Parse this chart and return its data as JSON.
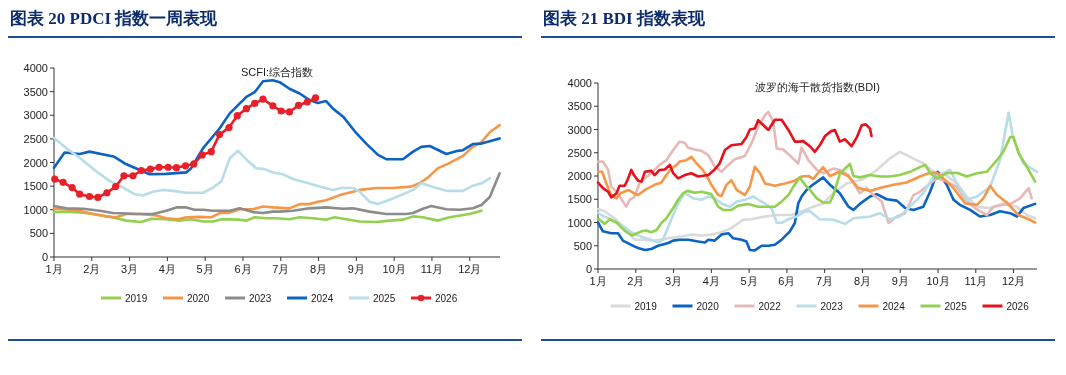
{
  "chart_data": [
    {
      "type": "line",
      "title": "图表 20 PDCI 指数一周表现",
      "subtitle": "SCFI:综合指数",
      "xlim": [
        1,
        12.8
      ],
      "xticks": [
        {
          "value": 1,
          "label": "1月"
        },
        {
          "value": 2,
          "label": "2月"
        },
        {
          "value": 3,
          "label": "3月"
        },
        {
          "value": 4,
          "label": "4月"
        },
        {
          "value": 5,
          "label": "5月"
        },
        {
          "value": 6,
          "label": "6月"
        },
        {
          "value": 7,
          "label": "7月"
        },
        {
          "value": 8,
          "label": "8月"
        },
        {
          "value": 9,
          "label": "9月"
        },
        {
          "value": 10,
          "label": "10月"
        },
        {
          "value": 11,
          "label": "11月"
        },
        {
          "value": 12,
          "label": "12月"
        }
      ],
      "ylim": [
        0,
        4000
      ],
      "yticks": [
        0,
        500,
        1000,
        1500,
        2000,
        2500,
        3000,
        3500,
        4000
      ],
      "legend": "bottom",
      "series": [
        {
          "name": "2019",
          "color": "#92d050",
          "x": [
            1.0,
            1.33,
            1.77,
            2.21,
            2.65,
            2.91,
            3.31,
            3.57,
            3.97,
            4.32,
            4.63,
            4.94,
            5.21,
            5.43,
            5.91,
            6.09,
            6.31,
            6.62,
            6.88,
            7.23,
            7.5,
            7.85,
            8.2,
            8.42,
            8.73,
            9.09,
            9.53,
            9.88,
            10.23,
            10.5,
            10.76,
            11.16,
            11.47,
            11.99,
            12.31
          ],
          "values": [
            950,
            960,
            940,
            890,
            820,
            770,
            740,
            810,
            800,
            770,
            800,
            750,
            750,
            800,
            790,
            770,
            840,
            820,
            820,
            800,
            840,
            820,
            790,
            840,
            800,
            750,
            740,
            770,
            790,
            860,
            840,
            770,
            840,
            910,
            980
          ]
        },
        {
          "name": "2020",
          "color": "#f79646",
          "x": [
            1.0,
            1.33,
            1.68,
            2.03,
            2.38,
            2.65,
            2.91,
            3.27,
            3.71,
            3.97,
            4.28,
            4.5,
            4.85,
            5.16,
            5.38,
            5.65,
            5.91,
            6.26,
            6.53,
            6.79,
            7.23,
            7.5,
            7.76,
            7.98,
            8.2,
            8.56,
            8.91,
            9.09,
            9.53,
            9.97,
            10.45,
            10.67,
            10.89,
            11.16,
            11.42,
            11.82,
            12.08,
            12.31,
            12.53,
            12.79
          ],
          "values": [
            1020,
            1010,
            980,
            910,
            860,
            840,
            910,
            910,
            880,
            820,
            800,
            840,
            850,
            840,
            930,
            940,
            1010,
            1010,
            1070,
            1050,
            1030,
            1120,
            1120,
            1170,
            1200,
            1310,
            1380,
            1420,
            1460,
            1460,
            1490,
            1560,
            1680,
            1880,
            1970,
            2140,
            2330,
            2430,
            2640,
            2790
          ]
        },
        {
          "name": "2023",
          "color": "#8c8c8c",
          "x": [
            1.0,
            1.33,
            1.77,
            2.21,
            2.56,
            2.91,
            3.18,
            3.62,
            3.97,
            4.24,
            4.5,
            4.72,
            4.94,
            5.21,
            5.65,
            5.91,
            6.26,
            6.53,
            6.79,
            6.97,
            7.32,
            7.76,
            8.2,
            8.65,
            8.91,
            9.35,
            9.79,
            10.32,
            10.5,
            10.76,
            10.98,
            11.38,
            11.73,
            12.08,
            12.31,
            12.53,
            12.79
          ],
          "values": [
            1080,
            1030,
            1020,
            980,
            930,
            920,
            910,
            910,
            980,
            1050,
            1050,
            1000,
            1000,
            980,
            980,
            1030,
            950,
            930,
            960,
            960,
            980,
            1030,
            1050,
            1020,
            1030,
            960,
            910,
            910,
            930,
            1020,
            1080,
            1010,
            1000,
            1030,
            1100,
            1270,
            1770
          ]
        },
        {
          "name": "2024",
          "color": "#0b63c4",
          "x": [
            1.0,
            1.28,
            1.68,
            1.94,
            2.6,
            2.87,
            3.53,
            3.97,
            4.5,
            4.63,
            4.94,
            5.38,
            5.65,
            6.09,
            6.31,
            6.53,
            6.79,
            6.97,
            7.23,
            7.5,
            7.76,
            7.98,
            8.2,
            8.38,
            8.65,
            9.0,
            9.26,
            9.57,
            9.79,
            10.23,
            10.5,
            10.72,
            10.94,
            11.38,
            11.64,
            11.82,
            12.08,
            12.31,
            12.79
          ],
          "values": [
            1890,
            2210,
            2180,
            2230,
            2120,
            1980,
            1750,
            1760,
            1790,
            1880,
            2300,
            2720,
            3040,
            3390,
            3490,
            3720,
            3740,
            3700,
            3560,
            3460,
            3320,
            3260,
            3300,
            3140,
            2970,
            2620,
            2400,
            2160,
            2070,
            2070,
            2230,
            2330,
            2350,
            2180,
            2240,
            2260,
            2390,
            2400,
            2510
          ]
        },
        {
          "name": "2025",
          "color": "#b7dde8",
          "x": [
            1.0,
            1.33,
            1.68,
            2.12,
            2.47,
            2.83,
            3.13,
            3.35,
            3.62,
            3.88,
            4.15,
            4.5,
            4.94,
            5.21,
            5.43,
            5.65,
            5.87,
            6.13,
            6.35,
            6.57,
            6.79,
            7.06,
            7.32,
            7.68,
            8.03,
            8.38,
            8.6,
            8.91,
            9.09,
            9.35,
            9.57,
            9.97,
            10.32,
            10.5,
            10.72,
            11.03,
            11.38,
            11.82,
            12.08,
            12.31,
            12.54
          ],
          "values": [
            2520,
            2300,
            2100,
            1810,
            1610,
            1470,
            1330,
            1300,
            1380,
            1420,
            1400,
            1360,
            1360,
            1470,
            1600,
            2090,
            2250,
            2030,
            1880,
            1860,
            1790,
            1750,
            1650,
            1570,
            1490,
            1420,
            1460,
            1460,
            1380,
            1170,
            1120,
            1240,
            1360,
            1420,
            1560,
            1480,
            1400,
            1400,
            1510,
            1560,
            1670
          ]
        },
        {
          "name": "2026",
          "color": "#e8202a",
          "marker": "circle",
          "x": [
            1.02,
            1.24,
            1.48,
            1.68,
            1.94,
            2.16,
            2.4,
            2.63,
            2.85,
            3.09,
            3.31,
            3.55,
            3.78,
            4.02,
            4.24,
            4.48,
            4.7,
            4.92,
            5.16,
            5.38,
            5.63,
            5.85,
            6.09,
            6.31,
            6.53,
            6.79,
            7.01,
            7.23,
            7.47,
            7.7,
            7.92
          ],
          "values": [
            1650,
            1580,
            1470,
            1330,
            1280,
            1260,
            1360,
            1490,
            1720,
            1720,
            1830,
            1860,
            1900,
            1900,
            1890,
            1930,
            1970,
            2160,
            2230,
            2590,
            2740,
            2990,
            3140,
            3250,
            3340,
            3200,
            3090,
            3070,
            3210,
            3280,
            3370
          ]
        }
      ]
    },
    {
      "type": "line",
      "title": "图表 21 BDI 指数表现",
      "subtitle": "波罗的海干散货指数(BDI)",
      "xlim": [
        1,
        12.62
      ],
      "xticks": [
        {
          "value": 1,
          "label": "1月"
        },
        {
          "value": 2,
          "label": "2月"
        },
        {
          "value": 3,
          "label": "3月"
        },
        {
          "value": 4,
          "label": "4月"
        },
        {
          "value": 5,
          "label": "5月"
        },
        {
          "value": 6,
          "label": "6月"
        },
        {
          "value": 7,
          "label": "7月"
        },
        {
          "value": 8,
          "label": "8月"
        },
        {
          "value": 9,
          "label": "9月"
        },
        {
          "value": 10,
          "label": "10月"
        },
        {
          "value": 11,
          "label": "11月"
        },
        {
          "value": 12,
          "label": "12月"
        }
      ],
      "ylim": [
        0,
        4000
      ],
      "yticks": [
        0,
        500,
        1000,
        1500,
        2000,
        2500,
        3000,
        3500,
        4000
      ],
      "legend": "bottom",
      "series": [
        {
          "name": "2019",
          "color": "#dadada",
          "x": [
            1.0,
            1.18,
            1.44,
            1.62,
            1.8,
            1.97,
            2.24,
            2.5,
            2.86,
            3.21,
            3.47,
            3.74,
            4.0,
            4.27,
            4.53,
            4.84,
            5.06,
            5.42,
            5.77,
            6.12,
            6.48,
            6.7,
            6.96,
            7.23,
            7.58,
            8.02,
            8.38,
            8.73,
            8.99,
            9.26,
            9.61,
            9.88,
            10.14,
            10.5,
            10.76,
            11.03,
            11.38,
            11.73,
            12.09,
            12.35,
            12.57
          ],
          "values": [
            1290,
            1240,
            1090,
            950,
            770,
            630,
            630,
            610,
            660,
            700,
            740,
            720,
            740,
            790,
            880,
            1060,
            1070,
            1130,
            1160,
            1160,
            1270,
            1340,
            1410,
            1630,
            1840,
            1930,
            2130,
            2380,
            2520,
            2410,
            2270,
            2090,
            2060,
            1840,
            1560,
            1340,
            1310,
            1410,
            1340,
            1160,
            1090
          ]
        },
        {
          "name": "2020",
          "color": "#0b63c4",
          "x": [
            1.0,
            1.13,
            1.35,
            1.53,
            1.66,
            1.88,
            2.06,
            2.24,
            2.41,
            2.59,
            2.86,
            2.99,
            3.16,
            3.39,
            3.65,
            3.83,
            3.92,
            4.09,
            4.27,
            4.45,
            4.58,
            4.8,
            4.93,
            5.02,
            5.15,
            5.33,
            5.51,
            5.68,
            5.86,
            6.08,
            6.21,
            6.3,
            6.39,
            6.52,
            6.65,
            6.96,
            7.14,
            7.4,
            7.63,
            7.76,
            7.93,
            8.2,
            8.38,
            8.64,
            8.91,
            9.13,
            9.35,
            9.61,
            9.79,
            9.99,
            10.23,
            10.41,
            10.58,
            10.85,
            11.11,
            11.38,
            11.64,
            11.91,
            12.09,
            12.26,
            12.57
          ],
          "values": [
            1000,
            810,
            770,
            770,
            610,
            520,
            450,
            410,
            430,
            500,
            560,
            610,
            630,
            630,
            590,
            570,
            630,
            610,
            740,
            770,
            660,
            630,
            590,
            410,
            400,
            500,
            500,
            520,
            630,
            810,
            990,
            1410,
            1560,
            1700,
            1790,
            1970,
            1810,
            1630,
            1340,
            1270,
            1400,
            1560,
            1610,
            1500,
            1470,
            1310,
            1270,
            1340,
            1660,
            2090,
            1810,
            1490,
            1380,
            1270,
            1130,
            1160,
            1240,
            1200,
            1130,
            1310,
            1400
          ]
        },
        {
          "name": "2022",
          "color": "#e6b9b8",
          "x": [
            1.0,
            1.13,
            1.27,
            1.35,
            1.49,
            1.62,
            1.75,
            1.84,
            1.95,
            2.1,
            2.24,
            2.41,
            2.63,
            2.81,
            2.99,
            3.16,
            3.3,
            3.38,
            3.56,
            3.74,
            3.92,
            4.09,
            4.27,
            4.4,
            4.62,
            4.89,
            5.06,
            5.24,
            5.42,
            5.51,
            5.64,
            5.73,
            5.9,
            6.12,
            6.3,
            6.39,
            6.57,
            6.79,
            6.96,
            7.23,
            7.4,
            7.63,
            7.93,
            8.11,
            8.29,
            8.51,
            8.69,
            8.91,
            9.13,
            9.35,
            9.52,
            9.75,
            9.97,
            10.23,
            10.5,
            10.72,
            10.98,
            11.29,
            11.47,
            11.73,
            11.95,
            12.17,
            12.4,
            12.48
          ],
          "values": [
            2310,
            2310,
            2130,
            1770,
            1660,
            1500,
            1340,
            1490,
            1540,
            1840,
            1950,
            2060,
            2240,
            2340,
            2560,
            2740,
            2710,
            2610,
            2570,
            2540,
            2450,
            2200,
            2090,
            2200,
            2360,
            2430,
            2700,
            3060,
            3310,
            3380,
            3160,
            2590,
            2570,
            2410,
            2270,
            2610,
            2340,
            2130,
            2060,
            2160,
            2130,
            2020,
            1630,
            1740,
            1590,
            1450,
            990,
            1130,
            1200,
            1590,
            1660,
            1810,
            1950,
            1880,
            1770,
            1490,
            1310,
            1160,
            1340,
            1380,
            1410,
            1520,
            1740,
            1520
          ]
        },
        {
          "name": "2023",
          "color": "#b7dde8",
          "x": [
            1.0,
            1.13,
            1.35,
            1.62,
            1.88,
            2.15,
            2.41,
            2.59,
            2.72,
            2.86,
            2.99,
            3.12,
            3.3,
            3.52,
            3.74,
            3.92,
            4.09,
            4.27,
            4.49,
            4.67,
            4.89,
            5.11,
            5.24,
            5.42,
            5.59,
            5.73,
            5.86,
            6.04,
            6.26,
            6.48,
            6.61,
            6.87,
            7.23,
            7.54,
            7.76,
            8.2,
            8.46,
            8.73,
            8.99,
            9.26,
            9.61,
            9.88,
            10.14,
            10.32,
            10.5,
            10.76,
            11.03,
            11.38,
            11.64,
            11.87,
            11.98,
            12.26,
            12.62
          ],
          "values": [
            1210,
            1140,
            1070,
            950,
            790,
            690,
            630,
            570,
            630,
            910,
            1160,
            1410,
            1630,
            1520,
            1490,
            1560,
            1520,
            1410,
            1340,
            1450,
            1490,
            1560,
            1490,
            1410,
            1310,
            1000,
            990,
            1070,
            1130,
            1240,
            1240,
            1070,
            1060,
            970,
            1090,
            1130,
            1200,
            1070,
            1130,
            1340,
            1630,
            1990,
            2060,
            2130,
            1840,
            1490,
            1560,
            1770,
            2340,
            3360,
            2840,
            2270,
            2090
          ]
        },
        {
          "name": "2024",
          "color": "#f79646",
          "x": [
            1.0,
            1.11,
            1.22,
            1.35,
            1.49,
            1.6,
            1.8,
            1.95,
            2.06,
            2.24,
            2.5,
            2.68,
            2.81,
            2.94,
            3.08,
            3.16,
            3.34,
            3.47,
            3.61,
            3.74,
            3.87,
            4.0,
            4.18,
            4.27,
            4.4,
            4.53,
            4.67,
            4.89,
            5.02,
            5.15,
            5.29,
            5.42,
            5.68,
            5.95,
            6.21,
            6.39,
            6.57,
            6.7,
            6.83,
            6.96,
            7.14,
            7.4,
            7.63,
            7.89,
            8.2,
            8.46,
            8.82,
            9.17,
            9.52,
            9.79,
            9.97,
            10.14,
            10.41,
            10.72,
            11.03,
            11.2,
            11.38,
            11.56,
            11.82,
            12.13,
            12.4,
            12.57
          ],
          "values": [
            2090,
            2090,
            1840,
            1590,
            1520,
            1630,
            1700,
            1630,
            1590,
            1700,
            1810,
            1860,
            2020,
            2160,
            2240,
            2310,
            2340,
            2410,
            2270,
            2160,
            2020,
            1810,
            1590,
            1570,
            1810,
            1910,
            1700,
            1590,
            1770,
            2200,
            2060,
            1840,
            1790,
            1840,
            1900,
            1990,
            2000,
            1940,
            2070,
            2190,
            2000,
            2090,
            1990,
            1740,
            1680,
            1740,
            1810,
            1860,
            1990,
            2070,
            2070,
            1950,
            1740,
            1410,
            1380,
            1520,
            1790,
            1590,
            1430,
            1160,
            1070,
            1000
          ]
        },
        {
          "name": "2025",
          "color": "#92d050",
          "x": [
            1.0,
            1.18,
            1.31,
            1.49,
            1.71,
            1.9,
            2.15,
            2.28,
            2.41,
            2.55,
            2.68,
            2.81,
            2.99,
            3.12,
            3.25,
            3.37,
            3.56,
            3.74,
            4.0,
            4.18,
            4.31,
            4.53,
            4.71,
            4.98,
            5.24,
            5.42,
            5.68,
            5.86,
            6.04,
            6.17,
            6.34,
            6.48,
            6.61,
            6.79,
            6.96,
            7.14,
            7.23,
            7.4,
            7.54,
            7.67,
            7.76,
            7.93,
            8.2,
            8.46,
            8.73,
            8.99,
            9.26,
            9.52,
            9.66,
            9.79,
            9.97,
            10.23,
            10.5,
            10.76,
            11.03,
            11.29,
            11.56,
            11.73,
            11.91,
            12.0,
            12.13,
            12.35,
            12.57
          ],
          "values": [
            1080,
            970,
            1070,
            1000,
            820,
            720,
            810,
            830,
            790,
            840,
            990,
            1090,
            1310,
            1490,
            1630,
            1680,
            1640,
            1660,
            1610,
            1340,
            1270,
            1270,
            1360,
            1400,
            1340,
            1340,
            1340,
            1450,
            1590,
            1770,
            1970,
            1810,
            1700,
            1520,
            1430,
            1430,
            1590,
            2040,
            2160,
            2260,
            2000,
            1970,
            2020,
            1990,
            1990,
            2020,
            2090,
            2190,
            2240,
            2060,
            1950,
            2060,
            2070,
            1990,
            2060,
            2090,
            2340,
            2520,
            2840,
            2830,
            2490,
            2200,
            1880
          ]
        },
        {
          "name": "2026",
          "color": "#e8101a",
          "x": [
            1.0,
            1.13,
            1.27,
            1.35,
            1.49,
            1.57,
            1.71,
            1.8,
            1.88,
            1.95,
            2.06,
            2.15,
            2.24,
            2.41,
            2.5,
            2.63,
            2.77,
            2.9,
            2.99,
            3.12,
            3.3,
            3.47,
            3.65,
            3.92,
            4.09,
            4.22,
            4.36,
            4.53,
            4.8,
            4.93,
            5.02,
            5.15,
            5.24,
            5.42,
            5.51,
            5.68,
            5.86,
            6.04,
            6.21,
            6.34,
            6.43,
            6.61,
            6.74,
            6.87,
            7.01,
            7.18,
            7.27,
            7.4,
            7.54,
            7.71,
            7.85,
            7.98,
            8.09,
            8.2,
            8.24
          ],
          "values": [
            1860,
            1740,
            1660,
            1540,
            1630,
            1790,
            1790,
            1950,
            2130,
            2020,
            1900,
            1880,
            2090,
            2110,
            2020,
            2130,
            2140,
            2240,
            2060,
            1950,
            2020,
            2060,
            1990,
            2020,
            2140,
            2270,
            2560,
            2660,
            2690,
            2840,
            3000,
            3020,
            3200,
            3060,
            2990,
            3210,
            3210,
            2990,
            2740,
            2740,
            2750,
            2640,
            2520,
            2660,
            2860,
            2970,
            2990,
            2740,
            2790,
            2640,
            2830,
            3090,
            3110,
            3020,
            2860
          ]
        }
      ]
    }
  ]
}
